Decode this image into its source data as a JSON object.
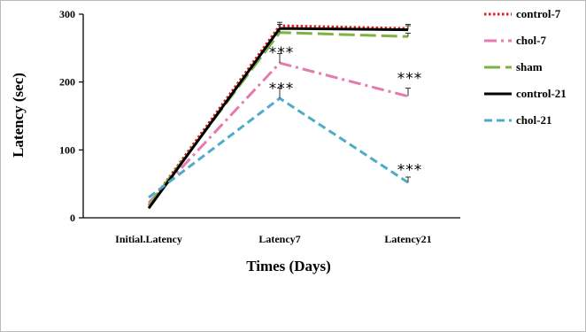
{
  "chart_data": {
    "type": "line",
    "title": "",
    "xlabel": "Times (Days)",
    "ylabel": "Latency (sec)",
    "categories": [
      "Initial.Latency",
      "Latency7",
      "Latency21"
    ],
    "ylim": [
      0,
      300
    ],
    "yticks": [
      "0",
      "100",
      "200",
      "300"
    ],
    "grid": false,
    "legend_position": "right",
    "series": [
      {
        "name": "control-7",
        "values": [
          18,
          283,
          279
        ],
        "errors": [
          0,
          5,
          6
        ],
        "color": "#e0201b",
        "dash": "dotted"
      },
      {
        "name": "chol-7",
        "values": [
          22,
          228,
          179
        ],
        "errors": [
          0,
          14,
          12
        ],
        "color": "#e57ab0",
        "dash": "dashdot"
      },
      {
        "name": "sham",
        "values": [
          18,
          273,
          267
        ],
        "errors": [
          0,
          5,
          5
        ],
        "color": "#7cb342",
        "dash": "longdash"
      },
      {
        "name": "control-21",
        "values": [
          14,
          279,
          277
        ],
        "errors": [
          0,
          6,
          6
        ],
        "color": "#000000",
        "dash": "solid"
      },
      {
        "name": "chol-21",
        "values": [
          30,
          176,
          52
        ],
        "errors": [
          0,
          15,
          8
        ],
        "color": "#4eacc6",
        "dash": "dash"
      }
    ],
    "annotations": [
      {
        "text": "***",
        "category": "Latency7",
        "y": 248
      },
      {
        "text": "***",
        "category": "Latency7",
        "y": 195
      },
      {
        "text": "***",
        "category": "Latency21",
        "y": 210
      },
      {
        "text": "***",
        "category": "Latency21",
        "y": 75
      }
    ]
  }
}
